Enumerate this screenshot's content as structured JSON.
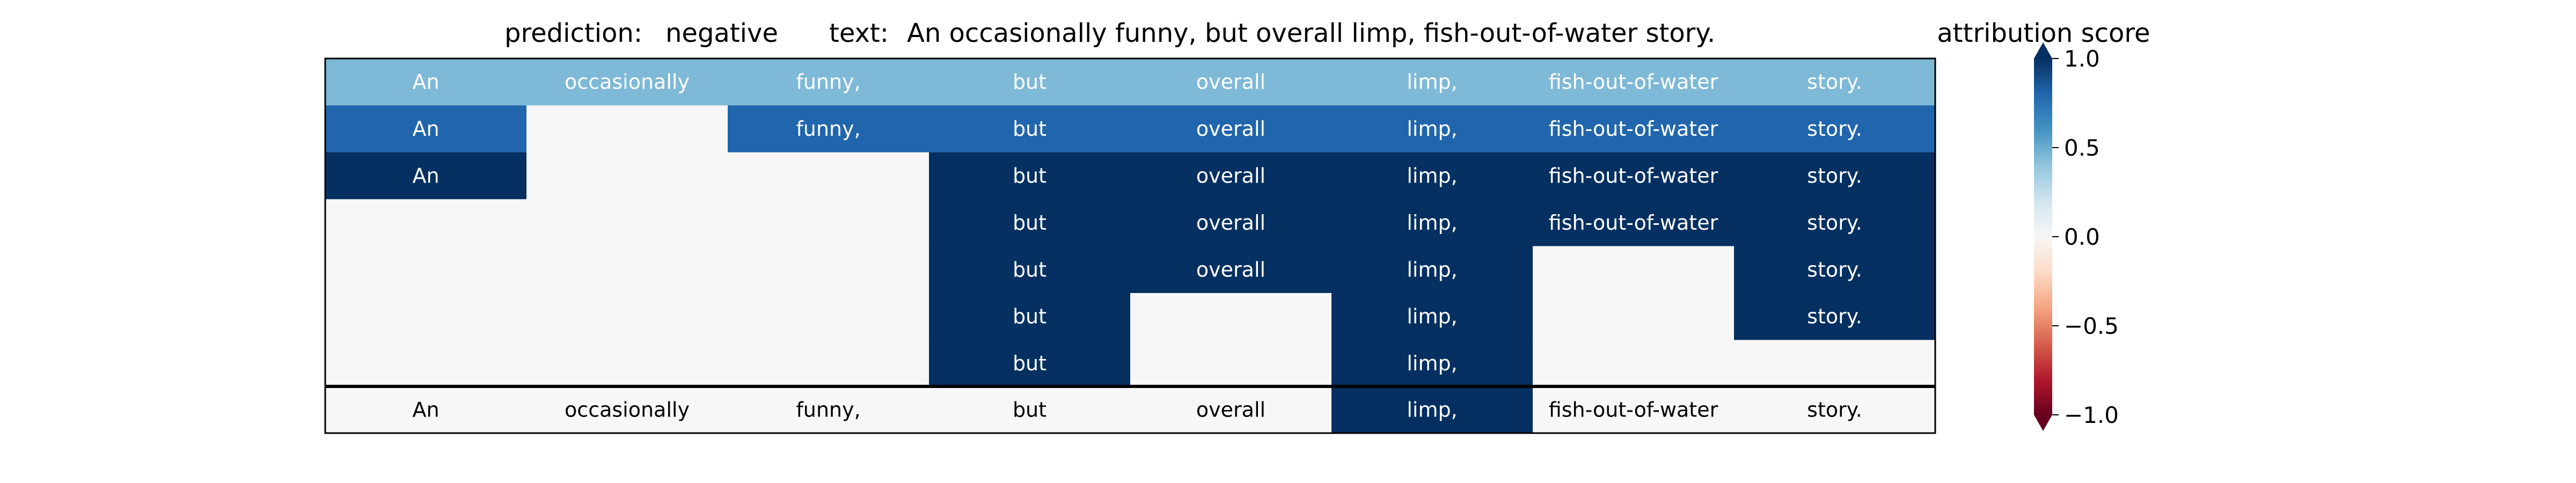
{
  "chart_data": {
    "type": "heatmap",
    "title": {
      "prediction_label": "prediction:",
      "prediction_value": "negative",
      "text_label": "text:",
      "text_value": "An occasionally funny, but overall limp, fish-out-of-water story."
    },
    "tokens": [
      "An",
      "occasionally",
      "funny,",
      "but",
      "overall",
      "limp,",
      "fish-out-of-water",
      "story."
    ],
    "rows": [
      [
        0.45,
        0.45,
        0.45,
        0.45,
        0.45,
        0.45,
        0.45,
        0.45
      ],
      [
        0.8,
        0.0,
        0.8,
        0.8,
        0.8,
        0.8,
        0.8,
        0.8
      ],
      [
        1.0,
        0.0,
        0.0,
        1.0,
        1.0,
        1.0,
        1.0,
        1.0
      ],
      [
        0.0,
        0.0,
        0.0,
        1.0,
        1.0,
        1.0,
        1.0,
        1.0
      ],
      [
        0.0,
        0.0,
        0.0,
        1.0,
        1.0,
        1.0,
        0.0,
        1.0
      ],
      [
        0.0,
        0.0,
        0.0,
        1.0,
        0.0,
        1.0,
        0.0,
        1.0
      ],
      [
        0.0,
        0.0,
        0.0,
        1.0,
        0.0,
        1.0,
        0.0,
        0.0
      ]
    ],
    "label_visible": [
      [
        true,
        true,
        true,
        true,
        true,
        true,
        true,
        true
      ],
      [
        true,
        false,
        true,
        true,
        true,
        true,
        true,
        true
      ],
      [
        true,
        false,
        false,
        true,
        true,
        true,
        true,
        true
      ],
      [
        false,
        false,
        false,
        true,
        true,
        true,
        true,
        true
      ],
      [
        false,
        false,
        false,
        true,
        true,
        true,
        false,
        true
      ],
      [
        false,
        false,
        false,
        true,
        false,
        true,
        false,
        true
      ],
      [
        false,
        false,
        false,
        true,
        false,
        true,
        false,
        false
      ]
    ],
    "summary_row": [
      0.0,
      0.0,
      0.0,
      0.0,
      0.0,
      1.0,
      0.0,
      0.0
    ],
    "colorbar": {
      "label": "attribution score",
      "range": [
        -1.0,
        1.0
      ],
      "ticks": [
        1.0,
        0.5,
        0.0,
        -0.5,
        -1.0
      ],
      "tick_labels": [
        "1.0",
        "0.5",
        "0.0",
        "−0.5",
        "−1.0"
      ],
      "colormap": "RdBu",
      "extend": "both"
    },
    "grid": false
  }
}
